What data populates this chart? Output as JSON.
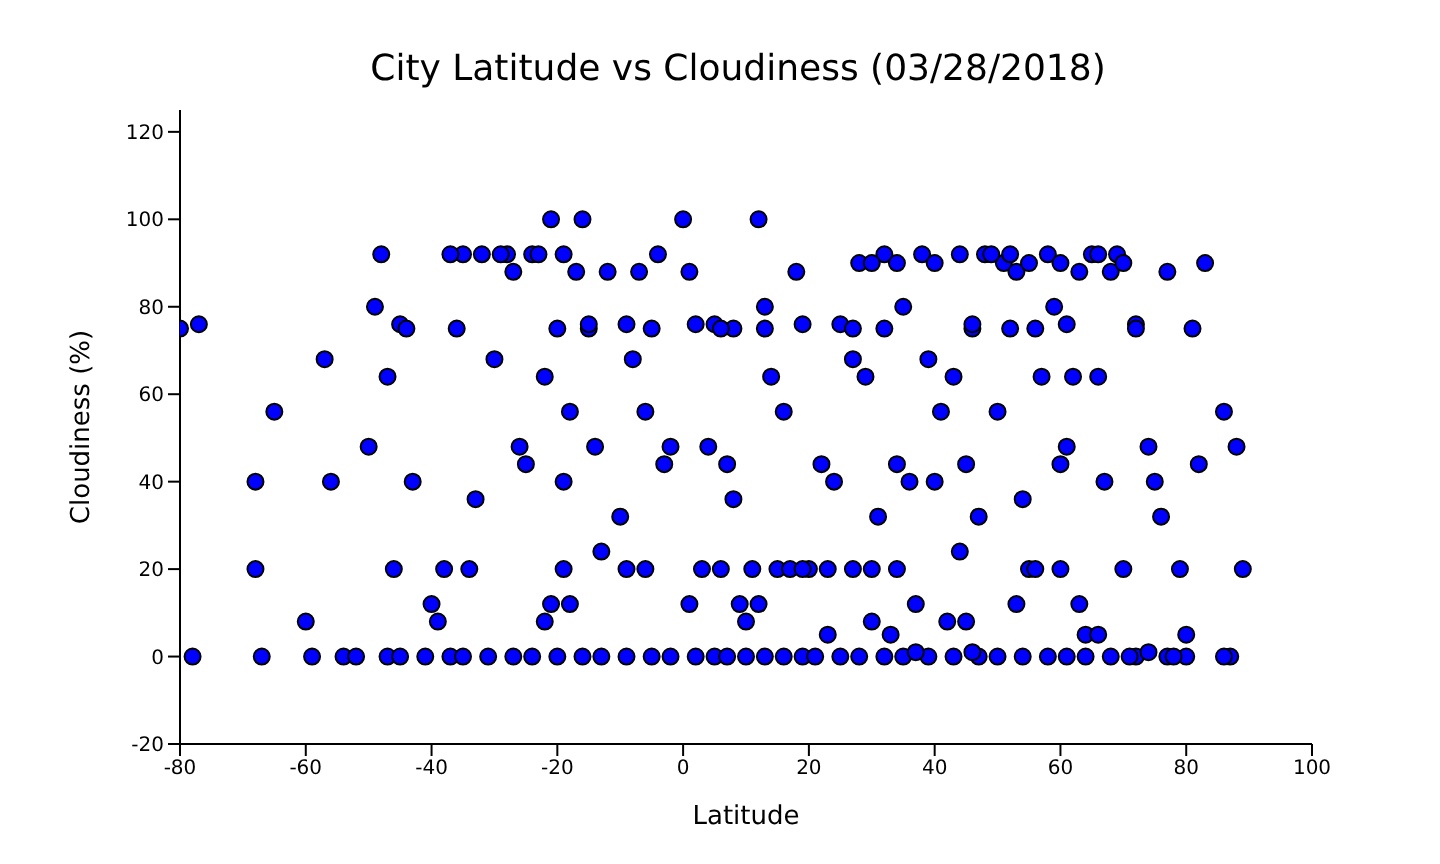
{
  "chart_data": {
    "type": "scatter",
    "title": "City Latitude vs Cloudiness (03/28/2018)",
    "xlabel": "Latitude",
    "ylabel": "Cloudiness (%)",
    "x": [
      -80,
      -77,
      -78,
      -68,
      -68,
      -67,
      -65,
      -60,
      -59,
      -57,
      -56,
      -54,
      -50,
      -49,
      -48,
      -47,
      -45,
      -44,
      -43,
      -46,
      -40,
      -39,
      -38,
      -36,
      -35,
      -34,
      -33,
      -32,
      -30,
      -28,
      -27,
      -26,
      -25,
      -24,
      -22,
      -21,
      -20,
      -19,
      -18,
      -17,
      -16,
      -15,
      -14,
      -13,
      -12,
      -10,
      -8,
      -7,
      -6,
      -4,
      -3,
      -2,
      0,
      1,
      2,
      4,
      5,
      6,
      7,
      8,
      9,
      10,
      11,
      12,
      13,
      14,
      15,
      16,
      18,
      19,
      20,
      22,
      23,
      24,
      25,
      27,
      28,
      29,
      30,
      31,
      32,
      33,
      34,
      35,
      36,
      37,
      38,
      39,
      40,
      41,
      42,
      43,
      44,
      45,
      46,
      47,
      48,
      50,
      51,
      52,
      53,
      54,
      55,
      56,
      57,
      58,
      59,
      60,
      61,
      62,
      63,
      64,
      65,
      66,
      67,
      68,
      69,
      70,
      72,
      74,
      75,
      76,
      77,
      79,
      80,
      81,
      82,
      83,
      86,
      87,
      88,
      89,
      -52,
      -47,
      -45,
      -41,
      -37,
      -35,
      -31,
      -27,
      -24,
      -20,
      -16,
      -13,
      -9,
      -5,
      -2,
      2,
      5,
      7,
      10,
      13,
      16,
      19,
      21,
      25,
      28,
      32,
      35,
      39,
      43,
      47,
      50,
      54,
      58,
      61,
      64,
      68,
      72,
      77,
      86,
      80,
      -22,
      -21,
      -19,
      -18,
      -9,
      -6,
      1,
      3,
      12,
      17,
      19,
      23,
      27,
      30,
      34,
      45,
      53,
      56,
      60,
      66,
      78,
      71,
      74,
      37,
      46,
      30,
      34,
      40,
      44,
      49,
      52,
      55,
      60,
      63,
      66,
      70,
      -37,
      -29,
      -19,
      -23,
      -9,
      -5,
      8,
      13,
      27,
      32,
      46,
      61,
      72,
      -15,
      6
    ],
    "values": [
      75,
      76,
      0,
      40,
      20,
      0,
      56,
      8,
      0,
      68,
      40,
      0,
      48,
      80,
      92,
      64,
      76,
      75,
      40,
      20,
      12,
      8,
      20,
      75,
      92,
      20,
      36,
      92,
      68,
      92,
      88,
      48,
      44,
      92,
      64,
      100,
      75,
      40,
      56,
      88,
      100,
      75,
      48,
      24,
      88,
      32,
      68,
      88,
      56,
      92,
      44,
      48,
      100,
      88,
      76,
      48,
      76,
      20,
      44,
      36,
      12,
      8,
      20,
      100,
      80,
      64,
      20,
      56,
      88,
      76,
      20,
      44,
      5,
      40,
      76,
      68,
      90,
      64,
      20,
      32,
      92,
      5,
      44,
      80,
      40,
      12,
      92,
      68,
      40,
      56,
      8,
      64,
      24,
      44,
      75,
      32,
      92,
      56,
      90,
      75,
      88,
      36,
      20,
      75,
      64,
      92,
      80,
      44,
      48,
      64,
      12,
      5,
      92,
      64,
      40,
      88,
      92,
      20,
      76,
      48,
      40,
      32,
      88,
      20,
      5,
      75,
      44,
      90,
      56,
      0,
      48,
      20,
      0,
      0,
      0,
      0,
      0,
      0,
      0,
      0,
      0,
      0,
      0,
      0,
      0,
      0,
      0,
      0,
      0,
      0,
      0,
      0,
      0,
      0,
      0,
      0,
      0,
      0,
      0,
      0,
      0,
      0,
      0,
      0,
      0,
      0,
      0,
      0,
      0,
      0,
      0,
      0,
      8,
      12,
      20,
      12,
      20,
      20,
      12,
      20,
      12,
      20,
      20,
      20,
      20,
      8,
      20,
      8,
      12,
      20,
      20,
      5,
      0,
      0,
      1,
      1,
      1,
      90,
      90,
      90,
      92,
      92,
      92,
      90,
      90,
      88,
      92,
      90,
      92,
      92,
      92,
      92,
      76,
      75,
      75,
      75,
      75,
      75,
      76,
      76,
      75,
      76,
      75
    ],
    "color": "#0000ff",
    "marker": "circle",
    "xlim": [
      -80,
      100
    ],
    "ylim": [
      -20,
      125
    ],
    "xticks": [
      -80,
      -60,
      -40,
      -20,
      0,
      20,
      40,
      60,
      80,
      100
    ],
    "yticks": [
      -20,
      0,
      20,
      40,
      60,
      80,
      100,
      120
    ],
    "grid": false
  }
}
